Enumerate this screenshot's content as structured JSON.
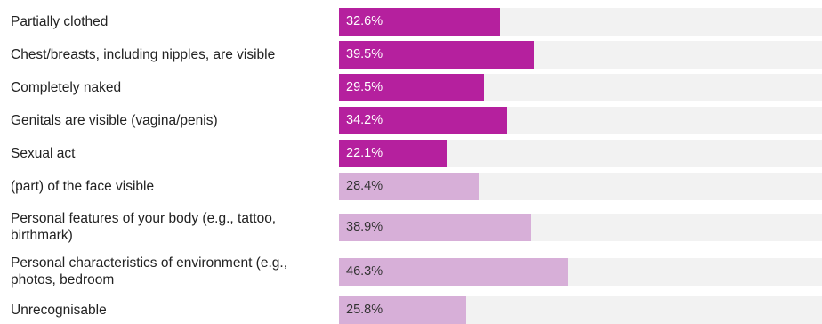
{
  "colors": {
    "highlight": "#b5209e",
    "muted": "#d7afd8",
    "track": "#f2f2f2"
  },
  "chart_data": {
    "type": "bar",
    "orientation": "horizontal",
    "title": "",
    "xlabel": "",
    "ylabel": "",
    "xlim": [
      0,
      100
    ],
    "unit": "%",
    "categories": [
      "Partially clothed",
      "Chest/breasts, including nipples, are visible",
      "Completely naked",
      "Genitals are visible (vagina/penis)",
      "Sexual act",
      "(part) of the face visible",
      "Personal features of your body (e.g., tattoo, birthmark)",
      "Personal characteristics of environment (e.g., photos, bedroom",
      "Unrecognisable"
    ],
    "values": [
      32.6,
      39.5,
      29.5,
      34.2,
      22.1,
      28.4,
      38.9,
      46.3,
      25.8
    ],
    "value_labels": [
      "32.6%",
      "39.5%",
      "29.5%",
      "34.2%",
      "22.1%",
      "28.4%",
      "38.9%",
      "46.3%",
      "25.8%"
    ],
    "highlight": [
      true,
      true,
      true,
      true,
      true,
      false,
      false,
      false,
      false
    ]
  }
}
